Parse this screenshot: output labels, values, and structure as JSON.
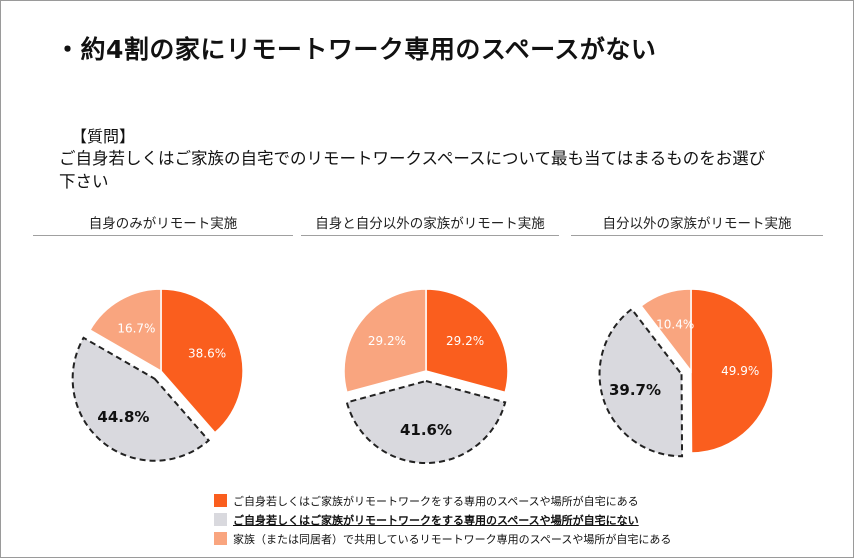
{
  "page": {
    "title": "・約4割の家にリモートワーク専用のスペースがない",
    "question_label": "【質問】",
    "question_text": "ご自身若しくはご家族の自宅でのリモートワークスペースについて最も当てはまるものをお選び下さい"
  },
  "colors": {
    "has_space": "#fa5e1e",
    "no_space": "#d9d9de",
    "shared": "#f9a57f",
    "label_dark": "#111111",
    "label_light": "#ffffff"
  },
  "legend": [
    {
      "label": "ご自身若しくはご家族がリモートワークをする専用のスペースや場所が自宅にある",
      "color": "#fa5e1e",
      "emphasis": false
    },
    {
      "label": "ご自身若しくはご家族がリモートワークをする専用のスペースや場所が自宅にない",
      "color": "#d9d9de",
      "emphasis": true
    },
    {
      "label": "家族（または同居者）で共用しているリモートワーク専用のスペースや場所が自宅にある",
      "color": "#f9a57f",
      "emphasis": false
    }
  ],
  "chart_data": [
    {
      "type": "pie",
      "title": "自身のみがリモート実施",
      "slices": [
        {
          "label": "ご自身若しくはご家族がリモートワークをする専用のスペースや場所が自宅にある",
          "value": 38.6,
          "text": "38.6%",
          "color": "#fa5e1e",
          "exploded": false
        },
        {
          "label": "ご自身若しくはご家族がリモートワークをする専用のスペースや場所が自宅にない",
          "value": 44.8,
          "text": "44.8%",
          "color": "#d9d9de",
          "exploded": true
        },
        {
          "label": "家族（または同居者）で共用しているリモートワーク専用のスペースや場所が自宅にある",
          "value": 16.7,
          "text": "16.7%",
          "color": "#f9a57f",
          "exploded": false
        }
      ]
    },
    {
      "type": "pie",
      "title": "自身と自分以外の家族がリモート実施",
      "slices": [
        {
          "label": "ご自身若しくはご家族がリモートワークをする専用のスペースや場所が自宅にある",
          "value": 29.2,
          "text": "29.2%",
          "color": "#fa5e1e",
          "exploded": false
        },
        {
          "label": "ご自身若しくはご家族がリモートワークをする専用のスペースや場所が自宅にない",
          "value": 41.6,
          "text": "41.6%",
          "color": "#d9d9de",
          "exploded": true
        },
        {
          "label": "家族（または同居者）で共用しているリモートワーク専用のスペースや場所が自宅にある",
          "value": 29.2,
          "text": "29.2%",
          "color": "#f9a57f",
          "exploded": false
        }
      ]
    },
    {
      "type": "pie",
      "title": "自分以外の家族がリモート実施",
      "slices": [
        {
          "label": "ご自身若しくはご家族がリモートワークをする専用のスペースや場所が自宅にある",
          "value": 49.9,
          "text": "49.9%",
          "color": "#fa5e1e",
          "exploded": false
        },
        {
          "label": "ご自身若しくはご家族がリモートワークをする専用のスペースや場所が自宅にない",
          "value": 39.7,
          "text": "39.7%",
          "color": "#d9d9de",
          "exploded": true
        },
        {
          "label": "家族（または同居者）で共用しているリモートワーク専用のスペースや場所が自宅にある",
          "value": 10.4,
          "text": "10.4%",
          "color": "#f9a57f",
          "exploded": false
        }
      ]
    }
  ]
}
